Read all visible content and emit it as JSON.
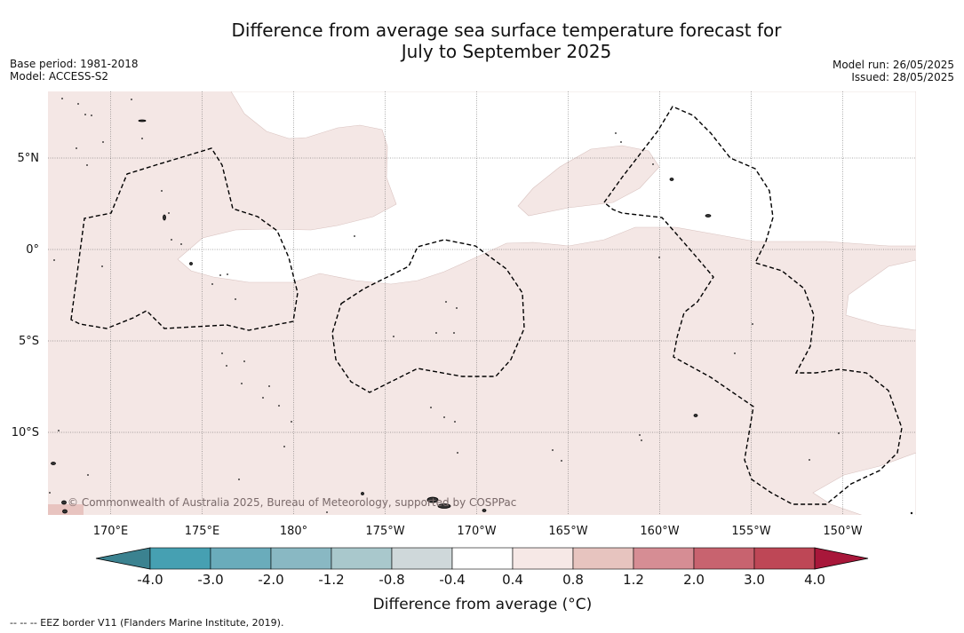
{
  "title_line1": "Difference from average sea surface temperature forecast for",
  "title_line2": "July to September 2025",
  "base_period": "Base period: 1981-2018",
  "model": "Model: ACCESS-S2",
  "model_run": "Model run: 26/05/2025",
  "issued": "Issued: 28/05/2025",
  "copyright": "© Commonwealth of Australia 2025, Bureau of Meteorology, supported by COSPPac",
  "latitudes": [
    {
      "label": "5°N",
      "value": 5
    },
    {
      "label": "0°",
      "value": 0
    },
    {
      "label": "5°S",
      "value": -5
    },
    {
      "label": "10°S",
      "value": -10
    }
  ],
  "longitudes": [
    {
      "label": "170°E",
      "value": 170
    },
    {
      "label": "175°E",
      "value": 175
    },
    {
      "label": "180°",
      "value": 180
    },
    {
      "label": "175°W",
      "value": 185
    },
    {
      "label": "170°W",
      "value": 190
    },
    {
      "label": "165°W",
      "value": 195
    },
    {
      "label": "160°W",
      "value": 200
    },
    {
      "label": "155°W",
      "value": 205
    },
    {
      "label": "150°W",
      "value": 210
    }
  ],
  "colorbar": {
    "title": "Difference from average (°C)",
    "tick_labels": [
      "-4.0",
      "-3.0",
      "-2.0",
      "-1.2",
      "-0.8",
      "-0.4",
      "0.4",
      "0.8",
      "1.2",
      "2.0",
      "3.0",
      "4.0"
    ],
    "colors": [
      "#46a0b2",
      "#6aacbb",
      "#89b8c3",
      "#a9c8cc",
      "#cfd8da",
      "#ffffff",
      "#f6e8e6",
      "#e7c4bf",
      "#d68d94",
      "#c8636f",
      "#be4756"
    ],
    "under_color": "#3b8290",
    "over_color": "#a8173a"
  },
  "colors": {
    "anomaly_fill": "#f4e7e5",
    "land": "#333333",
    "eez": "#000000"
  },
  "footnote": "--  --  -- EEZ border V11 (Flanders Marine Institute, 2019)."
}
